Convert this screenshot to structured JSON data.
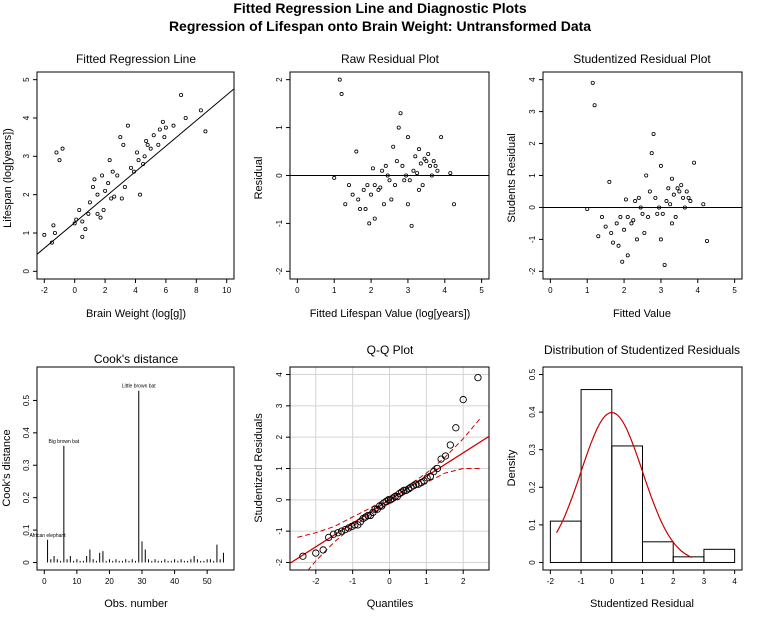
{
  "figure": {
    "title_line1": "Fitted Regression Line and Diagnostic Plots",
    "title_line2": "Regression of Lifespan onto Brain Weight: Untransformed Data"
  },
  "colors": {
    "black": "#000000",
    "red": "#cc0000",
    "grid": "#d3d3d3"
  },
  "chart_data": [
    {
      "type": "scatter",
      "title": "Fitted Regression Line",
      "xlabel": "Brain Weight (log[g])",
      "ylabel": "Lifespan (log[years])",
      "xlim": [
        -2,
        10
      ],
      "ylim": [
        0,
        5
      ],
      "xticks": [
        -2,
        0,
        2,
        4,
        6,
        8,
        10
      ],
      "yticks": [
        0,
        1,
        2,
        3,
        4,
        5
      ],
      "fit_line": {
        "intercept": 1.27,
        "slope": 0.333
      },
      "points": [
        [
          -2.0,
          0.95
        ],
        [
          -1.5,
          0.75
        ],
        [
          -1.4,
          1.2
        ],
        [
          -1.2,
          3.1
        ],
        [
          -1.0,
          2.9
        ],
        [
          -0.8,
          3.2
        ],
        [
          0.0,
          1.25
        ],
        [
          0.3,
          1.6
        ],
        [
          0.5,
          0.9
        ],
        [
          0.7,
          1.1
        ],
        [
          0.9,
          1.5
        ],
        [
          1.0,
          1.8
        ],
        [
          1.2,
          2.2
        ],
        [
          1.3,
          2.4
        ],
        [
          1.5,
          2.0
        ],
        [
          1.5,
          1.5
        ],
        [
          1.7,
          1.4
        ],
        [
          1.8,
          2.5
        ],
        [
          2.0,
          2.1
        ],
        [
          2.2,
          2.3
        ],
        [
          2.4,
          1.9
        ],
        [
          2.5,
          2.6
        ],
        [
          2.6,
          1.95
        ],
        [
          2.8,
          2.5
        ],
        [
          3.0,
          3.5
        ],
        [
          3.2,
          3.3
        ],
        [
          3.3,
          2.2
        ],
        [
          3.5,
          3.8
        ],
        [
          3.7,
          2.7
        ],
        [
          3.9,
          2.6
        ],
        [
          4.1,
          3.1
        ],
        [
          4.2,
          2.9
        ],
        [
          4.3,
          2.0
        ],
        [
          4.5,
          2.8
        ],
        [
          4.6,
          3.0
        ],
        [
          4.7,
          3.4
        ],
        [
          4.8,
          3.3
        ],
        [
          5.0,
          3.2
        ],
        [
          5.2,
          3.55
        ],
        [
          5.5,
          3.3
        ],
        [
          5.6,
          3.7
        ],
        [
          5.8,
          3.9
        ],
        [
          6.0,
          3.75
        ],
        [
          6.5,
          3.8
        ],
        [
          7.0,
          4.6
        ],
        [
          7.3,
          4.0
        ],
        [
          8.3,
          4.2
        ],
        [
          8.6,
          3.65
        ],
        [
          2.3,
          2.9
        ],
        [
          3.1,
          1.9
        ],
        [
          0.5,
          1.3
        ],
        [
          1.9,
          1.6
        ],
        [
          0.1,
          1.35
        ],
        [
          -1.3,
          1.0
        ],
        [
          5.9,
          3.5
        ]
      ]
    },
    {
      "type": "scatter",
      "title": "Raw Residual Plot",
      "xlabel": "Fitted Lifespan Value (log[years])",
      "ylabel": "Residual",
      "xlim": [
        0,
        5
      ],
      "ylim": [
        -2,
        2
      ],
      "xticks": [
        0,
        1,
        2,
        3,
        4,
        5
      ],
      "yticks": [
        -2,
        -1,
        0,
        1,
        2
      ],
      "hline": 0,
      "points": [
        [
          1.0,
          -0.05
        ],
        [
          1.15,
          2.0
        ],
        [
          1.2,
          1.7
        ],
        [
          1.3,
          -0.6
        ],
        [
          1.4,
          -0.2
        ],
        [
          1.5,
          -0.4
        ],
        [
          1.6,
          0.5
        ],
        [
          1.65,
          -0.5
        ],
        [
          1.7,
          -0.7
        ],
        [
          1.8,
          -0.3
        ],
        [
          1.9,
          -0.2
        ],
        [
          1.95,
          -1.0
        ],
        [
          2.0,
          -0.4
        ],
        [
          2.1,
          -0.2
        ],
        [
          2.1,
          -0.9
        ],
        [
          2.2,
          -0.3
        ],
        [
          2.3,
          0.1
        ],
        [
          2.35,
          -0.6
        ],
        [
          2.4,
          0.2
        ],
        [
          2.5,
          -0.1
        ],
        [
          2.55,
          -0.5
        ],
        [
          2.6,
          0.6
        ],
        [
          2.7,
          0.3
        ],
        [
          2.75,
          1.0
        ],
        [
          2.8,
          1.3
        ],
        [
          2.85,
          0.2
        ],
        [
          2.9,
          -0.1
        ],
        [
          3.0,
          0.8
        ],
        [
          3.0,
          -0.6
        ],
        [
          3.05,
          -0.1
        ],
        [
          3.1,
          -1.05
        ],
        [
          3.15,
          0.1
        ],
        [
          3.2,
          0.4
        ],
        [
          3.25,
          0.05
        ],
        [
          3.3,
          -0.3
        ],
        [
          3.35,
          0.25
        ],
        [
          3.4,
          -0.2
        ],
        [
          3.5,
          0.3
        ],
        [
          3.55,
          0.45
        ],
        [
          3.6,
          0.2
        ],
        [
          3.65,
          0.0
        ],
        [
          3.7,
          0.3
        ],
        [
          3.75,
          0.2
        ],
        [
          3.8,
          0.1
        ],
        [
          3.9,
          0.8
        ],
        [
          4.15,
          0.05
        ],
        [
          4.25,
          -0.6
        ],
        [
          2.45,
          0.0
        ],
        [
          1.85,
          -0.7
        ],
        [
          2.65,
          -0.2
        ],
        [
          3.45,
          0.35
        ],
        [
          2.25,
          -0.25
        ],
        [
          2.95,
          0.0
        ],
        [
          3.3,
          0.55
        ],
        [
          2.05,
          0.15
        ]
      ]
    },
    {
      "type": "scatter",
      "title": "Studentized Residual Plot",
      "xlabel": "Fitted Value",
      "ylabel": "Students Residual",
      "xlim": [
        0,
        5
      ],
      "ylim": [
        -2,
        4
      ],
      "xticks": [
        0,
        1,
        2,
        3,
        4,
        5
      ],
      "yticks": [
        -2,
        -1,
        0,
        1,
        2,
        3,
        4
      ],
      "hline": 0,
      "points": [
        [
          1.0,
          -0.05
        ],
        [
          1.15,
          3.9
        ],
        [
          1.2,
          3.2
        ],
        [
          1.3,
          -0.9
        ],
        [
          1.4,
          -0.3
        ],
        [
          1.5,
          -0.6
        ],
        [
          1.6,
          0.8
        ],
        [
          1.65,
          -0.8
        ],
        [
          1.7,
          -1.1
        ],
        [
          1.8,
          -0.5
        ],
        [
          1.9,
          -0.3
        ],
        [
          1.95,
          -1.7
        ],
        [
          2.0,
          -0.7
        ],
        [
          2.1,
          -0.3
        ],
        [
          2.1,
          -1.5
        ],
        [
          2.2,
          -0.5
        ],
        [
          2.3,
          0.2
        ],
        [
          2.35,
          -1.0
        ],
        [
          2.4,
          0.3
        ],
        [
          2.5,
          -0.2
        ],
        [
          2.55,
          -0.8
        ],
        [
          2.6,
          1.0
        ],
        [
          2.7,
          0.5
        ],
        [
          2.75,
          1.7
        ],
        [
          2.8,
          2.3
        ],
        [
          2.85,
          0.3
        ],
        [
          2.9,
          -0.2
        ],
        [
          3.0,
          1.3
        ],
        [
          3.0,
          -1.0
        ],
        [
          3.05,
          -0.2
        ],
        [
          3.1,
          -1.8
        ],
        [
          3.15,
          0.2
        ],
        [
          3.2,
          0.6
        ],
        [
          3.25,
          0.1
        ],
        [
          3.3,
          -0.5
        ],
        [
          3.35,
          0.4
        ],
        [
          3.4,
          -0.3
        ],
        [
          3.5,
          0.5
        ],
        [
          3.55,
          0.7
        ],
        [
          3.6,
          0.3
        ],
        [
          3.65,
          0.0
        ],
        [
          3.7,
          0.5
        ],
        [
          3.75,
          0.3
        ],
        [
          3.8,
          0.2
        ],
        [
          3.9,
          1.4
        ],
        [
          4.15,
          0.1
        ],
        [
          4.25,
          -1.05
        ],
        [
          2.45,
          0.0
        ],
        [
          1.85,
          -1.2
        ],
        [
          2.65,
          -0.3
        ],
        [
          3.45,
          0.6
        ],
        [
          2.25,
          -0.4
        ],
        [
          2.95,
          0.0
        ],
        [
          3.3,
          0.9
        ],
        [
          2.05,
          0.25
        ]
      ]
    },
    {
      "type": "bar",
      "title": "Cook's distance",
      "xlabel": "Obs. number",
      "ylabel": "Cook's distance",
      "xlim": [
        0,
        56
      ],
      "ylim": [
        0,
        0.58
      ],
      "xticks": [
        0,
        10,
        20,
        30,
        40,
        50
      ],
      "yticks": [
        0.0,
        0.1,
        0.2,
        0.3,
        0.4,
        0.5
      ],
      "values": [
        0.07,
        0.01,
        0.02,
        0.01,
        0.005,
        0.36,
        0.01,
        0.02,
        0.005,
        0.01,
        0.005,
        0.005,
        0.02,
        0.04,
        0.01,
        0.005,
        0.03,
        0.035,
        0.005,
        0.01,
        0.005,
        0.01,
        0.005,
        0.005,
        0.01,
        0.005,
        0.01,
        0.005,
        0.53,
        0.065,
        0.04,
        0.01,
        0.005,
        0.01,
        0.005,
        0.005,
        0.01,
        0.005,
        0.005,
        0.01,
        0.005,
        0.01,
        0.005,
        0.005,
        0.01,
        0.02,
        0.01,
        0.005,
        0.005,
        0.01,
        0.01,
        0.005,
        0.055,
        0.01,
        0.03
      ],
      "annotations": [
        {
          "label": "African elephant",
          "x": 1,
          "y": 0.07
        },
        {
          "label": "Big brown bat",
          "x": 6,
          "y": 0.36
        },
        {
          "label": "Little brown bat",
          "x": 29,
          "y": 0.53
        }
      ]
    },
    {
      "type": "scatter",
      "title": "Q-Q Plot",
      "xlabel": "Quantiles",
      "ylabel": "Studentized Residuals",
      "xlim": [
        -2.5,
        2.5
      ],
      "ylim": [
        -2,
        4
      ],
      "xticks": [
        -2,
        -1,
        0,
        1,
        2
      ],
      "yticks": [
        -2,
        -1,
        0,
        1,
        2,
        3,
        4
      ],
      "grid": true,
      "ref_line": {
        "intercept": 0.0,
        "slope": 0.75
      },
      "envelope_upper": [
        [
          -2.5,
          -1.2
        ],
        [
          -2.0,
          -1.05
        ],
        [
          -1.5,
          -0.85
        ],
        [
          -1.0,
          -0.55
        ],
        [
          -0.5,
          -0.25
        ],
        [
          0.0,
          0.12
        ],
        [
          0.5,
          0.45
        ],
        [
          1.0,
          0.85
        ],
        [
          1.5,
          1.35
        ],
        [
          2.0,
          1.95
        ],
        [
          2.5,
          2.65
        ]
      ],
      "envelope_lower": [
        [
          -2.5,
          -2.65
        ],
        [
          -2.0,
          -1.95
        ],
        [
          -1.5,
          -1.35
        ],
        [
          -1.0,
          -0.85
        ],
        [
          -0.5,
          -0.45
        ],
        [
          0.0,
          -0.12
        ],
        [
          0.5,
          0.25
        ],
        [
          1.0,
          0.55
        ],
        [
          1.5,
          0.85
        ],
        [
          2.0,
          1.0
        ],
        [
          2.5,
          1.0
        ]
      ],
      "points": [
        [
          -2.35,
          -1.8
        ],
        [
          -2.0,
          -1.7
        ],
        [
          -1.8,
          -1.6
        ],
        [
          -1.65,
          -1.2
        ],
        [
          -1.52,
          -1.1
        ],
        [
          -1.4,
          -1.05
        ],
        [
          -1.3,
          -1.0
        ],
        [
          -1.2,
          -0.95
        ],
        [
          -1.11,
          -0.9
        ],
        [
          -1.02,
          -0.85
        ],
        [
          -0.94,
          -0.8
        ],
        [
          -0.86,
          -0.8
        ],
        [
          -0.79,
          -0.7
        ],
        [
          -0.72,
          -0.6
        ],
        [
          -0.65,
          -0.55
        ],
        [
          -0.58,
          -0.5
        ],
        [
          -0.52,
          -0.5
        ],
        [
          -0.45,
          -0.4
        ],
        [
          -0.39,
          -0.3
        ],
        [
          -0.33,
          -0.3
        ],
        [
          -0.27,
          -0.2
        ],
        [
          -0.21,
          -0.2
        ],
        [
          -0.15,
          -0.1
        ],
        [
          -0.09,
          -0.05
        ],
        [
          -0.03,
          0.0
        ],
        [
          0.03,
          0.0
        ],
        [
          0.09,
          0.05
        ],
        [
          0.15,
          0.1
        ],
        [
          0.21,
          0.1
        ],
        [
          0.27,
          0.2
        ],
        [
          0.33,
          0.25
        ],
        [
          0.39,
          0.3
        ],
        [
          0.45,
          0.3
        ],
        [
          0.52,
          0.35
        ],
        [
          0.58,
          0.4
        ],
        [
          0.65,
          0.45
        ],
        [
          0.72,
          0.5
        ],
        [
          0.79,
          0.5
        ],
        [
          0.86,
          0.55
        ],
        [
          0.94,
          0.6
        ],
        [
          1.02,
          0.7
        ],
        [
          1.11,
          0.75
        ],
        [
          1.2,
          0.9
        ],
        [
          1.3,
          1.0
        ],
        [
          1.4,
          1.3
        ],
        [
          1.52,
          1.4
        ],
        [
          1.65,
          1.75
        ],
        [
          1.8,
          2.3
        ],
        [
          2.0,
          3.2
        ],
        [
          2.4,
          3.9
        ]
      ]
    },
    {
      "type": "bar",
      "subtype": "histogram",
      "title": "Distribution of Studentized Residuals",
      "xlabel": "Studentized Residual",
      "ylabel": "Density",
      "xlim": [
        -2,
        4
      ],
      "ylim": [
        0,
        0.5
      ],
      "xticks": [
        -2,
        -1,
        0,
        1,
        2,
        3,
        4
      ],
      "yticks": [
        0.0,
        0.1,
        0.2,
        0.3,
        0.4,
        0.5
      ],
      "bins": [
        [
          -2,
          -1,
          0.11
        ],
        [
          -1,
          0,
          0.46
        ],
        [
          0,
          1,
          0.31
        ],
        [
          1,
          2,
          0.055
        ],
        [
          2,
          3,
          0.015
        ],
        [
          3,
          4,
          0.035
        ]
      ],
      "density_curve": {
        "mean": 0.0,
        "sd": 1.0,
        "from": -1.8,
        "to": 2.6
      }
    }
  ]
}
